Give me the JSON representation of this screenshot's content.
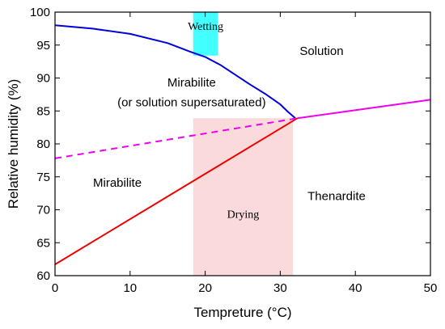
{
  "chart_data": {
    "type": "line",
    "title": "",
    "xlabel": "Tempreture (°C)",
    "ylabel": "Relative humidity (%)",
    "xlim": [
      0,
      50
    ],
    "ylim": [
      60,
      100
    ],
    "xticks": [
      0,
      10,
      20,
      30,
      40,
      50
    ],
    "yticks": [
      60,
      65,
      70,
      75,
      80,
      85,
      90,
      95,
      100
    ],
    "grid": false,
    "series": [
      {
        "color": "#0000dd",
        "style": "solid",
        "x": [
          0,
          5,
          10,
          15,
          18,
          20,
          22,
          24,
          26,
          28,
          30,
          31,
          32
        ],
        "y": [
          98.0,
          97.5,
          96.7,
          95.3,
          94.0,
          93.2,
          92.0,
          90.5,
          89.0,
          87.6,
          86.0,
          84.9,
          83.9
        ]
      },
      {
        "color": "#ee0000",
        "style": "solid",
        "x": [
          0,
          32.3
        ],
        "y": [
          61.7,
          83.9
        ]
      },
      {
        "color": "#ee00ee",
        "style": "dashed",
        "x": [
          0,
          32.3
        ],
        "y": [
          77.8,
          83.9
        ]
      },
      {
        "color": "#ee00ee",
        "style": "solid",
        "x": [
          32.3,
          50
        ],
        "y": [
          83.9,
          86.7
        ]
      }
    ],
    "bands": [
      {
        "label": "Wetting",
        "x_range": [
          18.4,
          21.7
        ],
        "y_range": [
          93.4,
          100
        ],
        "color": "#44ffff"
      },
      {
        "label": "Drying",
        "x_range": [
          18.4,
          31.7
        ],
        "y_range": [
          60,
          83.9
        ],
        "color": "#fadada"
      }
    ],
    "region_labels": [
      {
        "text": "Solution",
        "x": 35.5,
        "y": 93.5
      },
      {
        "text": "Mirabilite",
        "x": 18.2,
        "y": 88.7
      },
      {
        "text": "(or solution supersaturated)",
        "x": 18.2,
        "y": 85.7
      },
      {
        "text": "Mirabilite",
        "x": 8.3,
        "y": 73.5
      },
      {
        "text": "Thenardite",
        "x": 37.5,
        "y": 71.5
      }
    ]
  }
}
